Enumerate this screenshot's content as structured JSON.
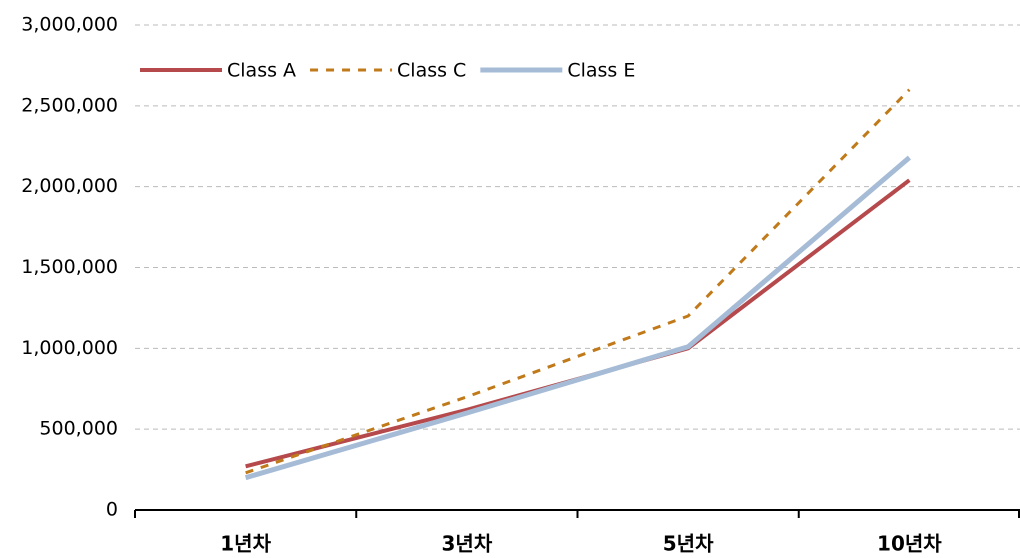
{
  "chart_data": {
    "type": "line",
    "categories": [
      "1년차",
      "3년차",
      "5년차",
      "10년차"
    ],
    "series": [
      {
        "name": "Class A",
        "color": "#b5494b",
        "dash": "solid",
        "width": 4,
        "values": [
          270000,
          620000,
          1000000,
          2040000
        ]
      },
      {
        "name": "Class C",
        "color": "#c07a1a",
        "dash": "dashed",
        "width": 3,
        "values": [
          230000,
          700000,
          1200000,
          2600000
        ]
      },
      {
        "name": "Class E",
        "color": "#a6bcd6",
        "dash": "solid",
        "width": 5,
        "values": [
          200000,
          600000,
          1010000,
          2180000
        ]
      }
    ],
    "ylim": [
      0,
      3000000
    ],
    "yticks": [
      0,
      {
        "value": 500000,
        "label": "500,000"
      },
      {
        "value": 1000000,
        "label": "1,000,000"
      },
      {
        "value": 1500000,
        "label": "1,500,000"
      },
      {
        "value": 2000000,
        "label": "2,000,000"
      },
      {
        "value": 2500000,
        "label": "2,500,000"
      },
      {
        "value": 3000000,
        "label": "3,000,000"
      }
    ],
    "grid": true,
    "legend": "top-left"
  }
}
